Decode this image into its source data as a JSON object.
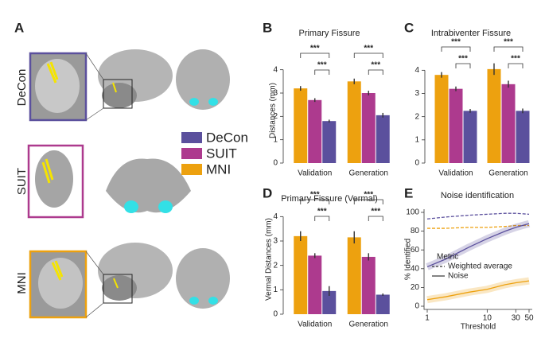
{
  "panel_a": {
    "label": "A",
    "rows": [
      "DeCon",
      "SUIT",
      "MNI"
    ]
  },
  "chart_data": [
    {
      "type": "bar",
      "panel_label": "B",
      "title": "Primary Fissure",
      "ylabel": "Distances (mm)",
      "categories": [
        "Validation",
        "Generation"
      ],
      "series": [
        {
          "name": "MNI",
          "color": "#eda10f",
          "values": [
            3.2,
            3.5
          ],
          "errors": [
            0.1,
            0.12
          ]
        },
        {
          "name": "SUIT",
          "color": "#ad3a8e",
          "values": [
            2.7,
            3.0
          ],
          "errors": [
            0.08,
            0.1
          ]
        },
        {
          "name": "DeCon",
          "color": "#5b509d",
          "values": [
            1.8,
            2.05
          ],
          "errors": [
            0.06,
            0.1
          ]
        }
      ],
      "significance": [
        "***",
        "***",
        "***",
        "***"
      ],
      "ylim": [
        0,
        4.5
      ],
      "yticks": [
        0,
        1,
        2,
        3,
        4
      ]
    },
    {
      "type": "bar",
      "panel_label": "C",
      "title": "Intrabiventer Fissure",
      "ylabel": "",
      "categories": [
        "Validation",
        "Generation"
      ],
      "series": [
        {
          "name": "MNI",
          "color": "#eda10f",
          "values": [
            3.8,
            4.05
          ],
          "errors": [
            0.12,
            0.25
          ]
        },
        {
          "name": "SUIT",
          "color": "#ad3a8e",
          "values": [
            3.2,
            3.4
          ],
          "errors": [
            0.1,
            0.15
          ]
        },
        {
          "name": "DeCon",
          "color": "#5b509d",
          "values": [
            2.25,
            2.25
          ],
          "errors": [
            0.08,
            0.1
          ]
        }
      ],
      "significance": [
        "***",
        "***",
        "***",
        "***"
      ],
      "ylim": [
        0,
        4.8
      ],
      "yticks": [
        0,
        1,
        2,
        3,
        4
      ]
    },
    {
      "type": "bar",
      "panel_label": "D",
      "title": "Primary Fissure (Vermal)",
      "ylabel": "Vermal Distances (mm)",
      "categories": [
        "Validation",
        "Generation"
      ],
      "series": [
        {
          "name": "MNI",
          "color": "#eda10f",
          "values": [
            3.2,
            3.15
          ],
          "errors": [
            0.2,
            0.25
          ]
        },
        {
          "name": "SUIT",
          "color": "#ad3a8e",
          "values": [
            2.4,
            2.35
          ],
          "errors": [
            0.1,
            0.15
          ]
        },
        {
          "name": "DeCon",
          "color": "#5b509d",
          "values": [
            0.95,
            0.8
          ],
          "errors": [
            0.2,
            0.05
          ]
        }
      ],
      "significance": [
        "***",
        "***",
        "***",
        "***"
      ],
      "ylim": [
        0,
        4.5
      ],
      "yticks": [
        0,
        1,
        2,
        3,
        4
      ]
    },
    {
      "type": "line",
      "panel_label": "E",
      "title": "Noise identification",
      "xlabel": "Threshold",
      "ylabel": "% Identified",
      "x": [
        1,
        2,
        5,
        10,
        20,
        30,
        50
      ],
      "log_x": true,
      "series": [
        {
          "color": "#5b509d",
          "dash": true,
          "values": [
            93,
            95,
            97,
            98,
            99,
            99,
            98
          ]
        },
        {
          "color": "#eda10f",
          "dash": true,
          "values": [
            83,
            83,
            84,
            84,
            85,
            86,
            86
          ]
        },
        {
          "color": "#5b509d",
          "dash": false,
          "values": [
            42,
            50,
            63,
            72,
            80,
            84,
            88
          ]
        },
        {
          "color": "#eda10f",
          "dash": false,
          "values": [
            7,
            10,
            15,
            18,
            23,
            25,
            27
          ]
        }
      ],
      "legend_title": "Metric",
      "legend_entries": [
        {
          "label": "Weighted average",
          "dash": true
        },
        {
          "label": "Noise",
          "dash": false
        }
      ],
      "xlim": [
        1,
        50
      ],
      "xticks": [
        1,
        10,
        30,
        50
      ],
      "ylim": [
        0,
        100
      ],
      "yticks": [
        0,
        20,
        40,
        60,
        80,
        100
      ]
    }
  ]
}
